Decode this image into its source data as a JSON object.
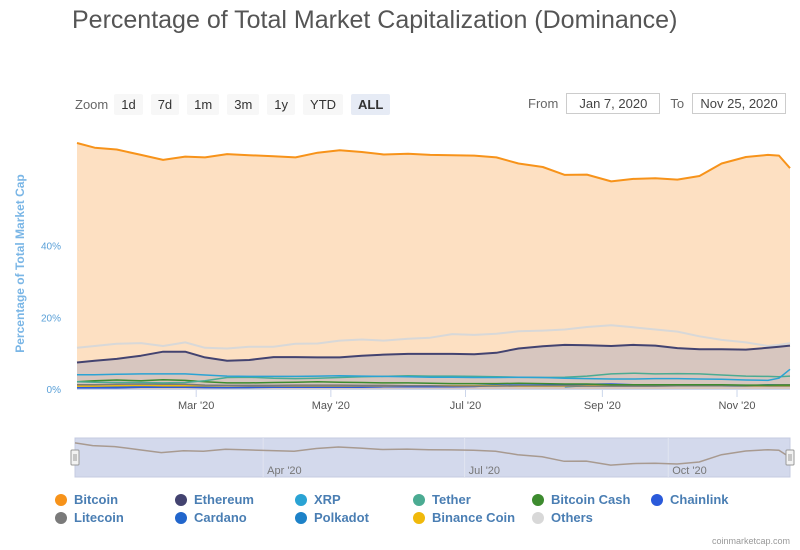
{
  "title": "Percentage of Total Market Capitalization (Dominance)",
  "toolbar": {
    "zoom_label": "Zoom",
    "buttons": [
      "1d",
      "7d",
      "1m",
      "3m",
      "1y",
      "YTD",
      "ALL"
    ],
    "active": "ALL"
  },
  "range": {
    "from_label": "From",
    "from_value": "Jan 7, 2020",
    "to_label": "To",
    "to_value": "Nov 25, 2020"
  },
  "credit": "coinmarketcap.com",
  "colors": {
    "Bitcoin": "#f7931a",
    "Ethereum": "#434370",
    "XRP": "#2aa3d4",
    "Tether": "#4bab92",
    "Bitcoin Cash": "#3d8b2f",
    "Chainlink": "#2a5ada",
    "Litecoin": "#7a7a7a",
    "Cardano": "#2266cc",
    "Polkadot": "#1d82c8",
    "Binance Coin": "#f0b90b",
    "Others": "#d8d8d8"
  },
  "legend": [
    "Bitcoin",
    "Ethereum",
    "XRP",
    "Tether",
    "Bitcoin Cash",
    "Chainlink",
    "Litecoin",
    "Cardano",
    "Polkadot",
    "Binance Coin",
    "Others"
  ],
  "chart_data": {
    "type": "line",
    "title": "Percentage of Total Market Capitalization (Dominance)",
    "ylabel": "Percentage of Total Market Cap",
    "ylim": [
      0,
      70
    ],
    "yticks": [
      0,
      20,
      40
    ],
    "ytick_labels": [
      "0%",
      "20%",
      "40%"
    ],
    "xlim": [
      "2020-01-07",
      "2020-11-25"
    ],
    "xticks": [
      "2020-03-01",
      "2020-05-01",
      "2020-07-01",
      "2020-09-01",
      "2020-11-01"
    ],
    "xtick_labels": [
      "Mar '20",
      "May '20",
      "Jul '20",
      "Sep '20",
      "Nov '20"
    ],
    "navigator_ticks": [
      "2020-04-01",
      "2020-07-01",
      "2020-10-01"
    ],
    "navigator_tick_labels": [
      "Apr '20",
      "Jul '20",
      "Oct '20"
    ],
    "fill_series": [
      "Bitcoin",
      "Ethereum"
    ],
    "x": [
      "2020-01-07",
      "2020-01-15",
      "2020-01-25",
      "2020-02-05",
      "2020-02-15",
      "2020-02-25",
      "2020-03-05",
      "2020-03-15",
      "2020-03-25",
      "2020-04-05",
      "2020-04-15",
      "2020-04-25",
      "2020-05-05",
      "2020-05-15",
      "2020-05-25",
      "2020-06-05",
      "2020-06-15",
      "2020-06-25",
      "2020-07-05",
      "2020-07-15",
      "2020-07-25",
      "2020-08-05",
      "2020-08-15",
      "2020-08-25",
      "2020-09-05",
      "2020-09-15",
      "2020-09-25",
      "2020-10-05",
      "2020-10-15",
      "2020-10-25",
      "2020-11-05",
      "2020-11-15",
      "2020-11-20",
      "2020-11-25"
    ],
    "series": [
      {
        "name": "Bitcoin",
        "values": [
          68.6,
          67.3,
          66.8,
          65.3,
          63.9,
          64.8,
          64.6,
          65.5,
          65.2,
          64.9,
          64.6,
          65.9,
          66.6,
          66.1,
          65.4,
          65.6,
          65.3,
          65.2,
          65.1,
          64.6,
          62.9,
          61.9,
          59.7,
          59.8,
          57.9,
          58.6,
          58.8,
          58.4,
          59.4,
          62.9,
          64.7,
          65.3,
          65.1,
          61.6
        ]
      },
      {
        "name": "Others",
        "values": [
          11.5,
          12.0,
          12.6,
          12.8,
          12.0,
          13.0,
          11.5,
          11.3,
          11.8,
          11.8,
          12.6,
          12.7,
          13.5,
          13.8,
          13.5,
          14.0,
          14.3,
          15.3,
          15.1,
          15.4,
          16.1,
          16.3,
          16.6,
          17.3,
          17.8,
          17.2,
          16.6,
          16.0,
          14.7,
          13.7,
          13.0,
          12.0,
          12.3,
          12.8
        ]
      },
      {
        "name": "Ethereum",
        "values": [
          7.4,
          7.9,
          8.4,
          9.3,
          10.4,
          10.4,
          8.8,
          7.9,
          8.1,
          8.9,
          8.9,
          8.8,
          8.8,
          9.3,
          9.6,
          9.8,
          9.8,
          9.8,
          9.7,
          10.1,
          11.3,
          11.9,
          12.3,
          12.2,
          12.0,
          12.3,
          12.1,
          11.4,
          11.1,
          11.1,
          11.0,
          11.5,
          11.8,
          12.1
        ]
      },
      {
        "name": "XRP",
        "values": [
          4.0,
          4.0,
          4.1,
          4.2,
          4.2,
          4.2,
          3.9,
          3.6,
          3.5,
          3.5,
          3.5,
          3.6,
          3.7,
          3.6,
          3.5,
          3.4,
          3.3,
          3.3,
          3.2,
          3.2,
          3.3,
          3.2,
          3.0,
          2.9,
          2.8,
          2.8,
          2.9,
          2.9,
          2.8,
          2.7,
          2.5,
          2.4,
          3.0,
          5.5
        ]
      },
      {
        "name": "Tether",
        "values": [
          2.0,
          1.9,
          1.8,
          1.8,
          1.7,
          1.8,
          2.3,
          3.2,
          3.3,
          3.0,
          2.9,
          3.0,
          3.2,
          3.4,
          3.5,
          3.7,
          3.6,
          3.6,
          3.5,
          3.4,
          3.3,
          3.2,
          3.3,
          3.6,
          4.2,
          4.4,
          4.2,
          4.3,
          4.2,
          3.9,
          3.6,
          3.5,
          3.4,
          3.6
        ]
      },
      {
        "name": "Bitcoin Cash",
        "values": [
          2.0,
          2.3,
          2.5,
          2.3,
          2.6,
          2.4,
          2.0,
          1.7,
          1.7,
          1.8,
          1.9,
          2.0,
          1.9,
          1.8,
          1.7,
          1.7,
          1.6,
          1.5,
          1.5,
          1.5,
          1.6,
          1.5,
          1.4,
          1.4,
          1.2,
          1.2,
          1.2,
          1.2,
          1.2,
          1.2,
          1.1,
          1.1,
          1.1,
          1.1
        ]
      },
      {
        "name": "Litecoin",
        "values": [
          1.2,
          1.2,
          1.3,
          1.4,
          1.3,
          1.3,
          1.1,
          1.0,
          1.0,
          1.0,
          1.1,
          1.1,
          1.1,
          1.0,
          1.0,
          0.9,
          0.9,
          0.8,
          0.8,
          0.8,
          0.9,
          0.9,
          0.9,
          0.8,
          0.8,
          0.8,
          0.8,
          0.9,
          0.9,
          0.9,
          1.0,
          1.1,
          1.2,
          1.2
        ]
      },
      {
        "name": "Binance Coin",
        "values": [
          0.8,
          0.8,
          0.9,
          1.0,
          0.9,
          0.9,
          0.9,
          0.9,
          0.9,
          0.9,
          0.9,
          0.9,
          0.9,
          0.9,
          0.9,
          0.9,
          0.9,
          0.9,
          0.9,
          0.9,
          0.8,
          0.8,
          0.8,
          0.9,
          1.0,
          1.1,
          0.9,
          1.0,
          1.1,
          1.0,
          0.9,
          0.9,
          0.9,
          0.9
        ]
      },
      {
        "name": "Chainlink",
        "values": [
          0.3,
          0.3,
          0.3,
          0.5,
          0.5,
          0.5,
          0.4,
          0.4,
          0.5,
          0.5,
          0.5,
          0.5,
          0.5,
          0.5,
          0.6,
          0.6,
          0.6,
          0.6,
          0.7,
          1.0,
          1.0,
          1.0,
          1.3,
          1.3,
          1.4,
          1.2,
          1.2,
          1.0,
          1.1,
          1.0,
          0.9,
          0.8,
          0.8,
          0.8
        ]
      },
      {
        "name": "Cardano",
        "values": [
          0.4,
          0.5,
          0.6,
          0.6,
          0.7,
          0.7,
          0.5,
          0.4,
          0.4,
          0.5,
          0.5,
          0.5,
          0.6,
          0.6,
          0.6,
          0.8,
          0.8,
          0.9,
          0.9,
          1.1,
          1.1,
          1.1,
          1.2,
          1.2,
          1.1,
          1.0,
          1.0,
          1.0,
          0.9,
          0.9,
          0.8,
          0.9,
          1.0,
          1.0
        ]
      },
      {
        "name": "Polkadot",
        "values": [
          0,
          0,
          0,
          0,
          0,
          0,
          0,
          0,
          0,
          0,
          0,
          0,
          0,
          0,
          0,
          0,
          0,
          0,
          0,
          0,
          0,
          0,
          0.6,
          0.9,
          1.2,
          1.1,
          1.0,
          1.0,
          1.0,
          0.9,
          0.9,
          1.2,
          1.2,
          1.2
        ]
      }
    ]
  }
}
